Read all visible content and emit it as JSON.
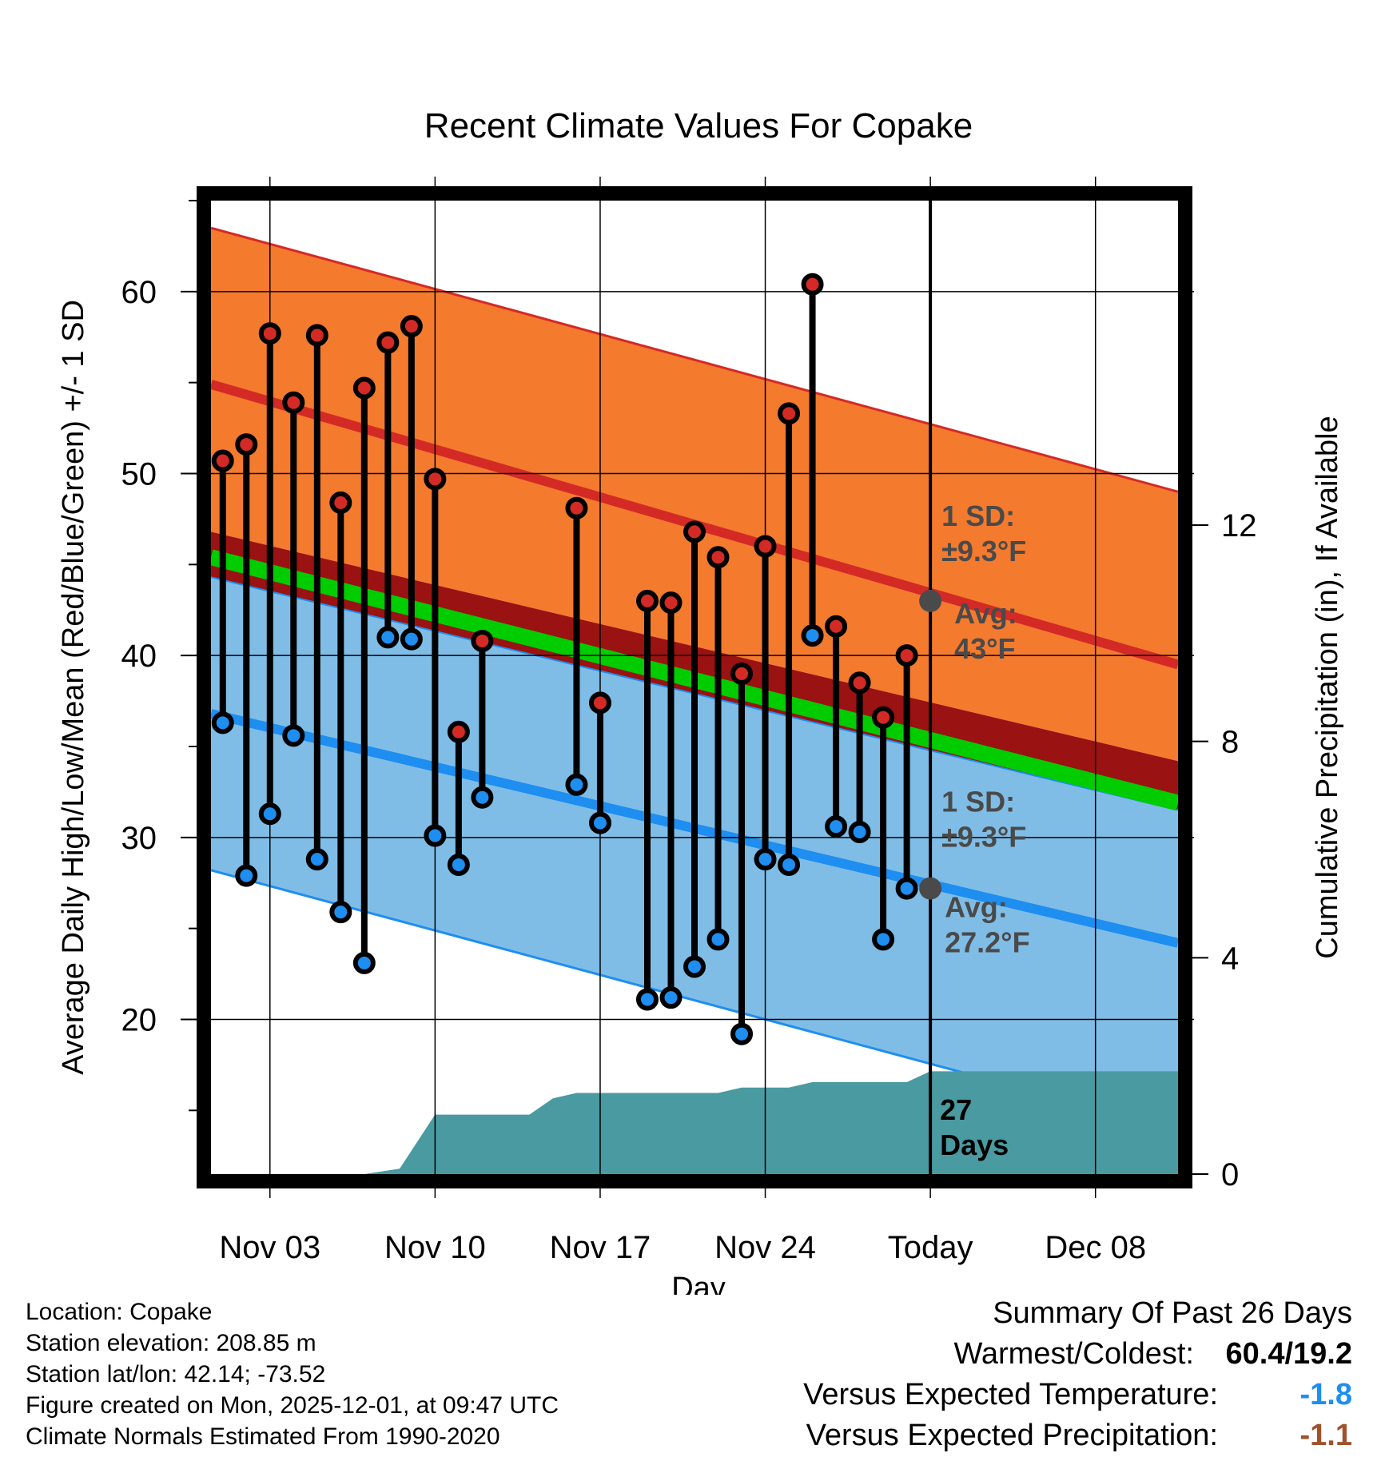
{
  "colors": {
    "high_band": "#f47a2e",
    "low_band": "#7fbde6",
    "high_line": "#d42a26",
    "low_line": "#1e8ef0",
    "mean_line": "#00cc00",
    "dark_band": "#9a1212",
    "precip": "#4a9aa2",
    "high_dot": "#d42a26",
    "low_dot": "#1e8ef0",
    "summary_temp": "#1e8ef0",
    "summary_precip": "#a0522d"
  },
  "chart_data": {
    "type": "line",
    "title": "Recent Climate Values For Copake",
    "xlabel": "Day",
    "ylabel": "Average Daily High/Low/Mean (Red/Blue/Green) +/- 1 SD",
    "y2label": "Cumulative Precipitation (in), If Available",
    "ylim": [
      11.5,
      65
    ],
    "y2lim": [
      0,
      18
    ],
    "xlim": [
      -0.5,
      40.5
    ],
    "x_ticks": [
      {
        "day": 2,
        "label": "Nov 03"
      },
      {
        "day": 9,
        "label": "Nov 10"
      },
      {
        "day": 16,
        "label": "Nov 17"
      },
      {
        "day": 23,
        "label": "Nov 24"
      },
      {
        "day": 30,
        "label": "Today"
      },
      {
        "day": 37,
        "label": "Dec 08"
      }
    ],
    "y_ticks": [
      20,
      30,
      40,
      50,
      60
    ],
    "y2_ticks": [
      0,
      4,
      8,
      12
    ],
    "normals": {
      "days": [
        -0.5,
        40.5
      ],
      "high_avg": [
        54.9,
        39.5
      ],
      "high_upper": [
        63.5,
        49.0
      ],
      "high_lower": [
        46.8,
        34.2
      ],
      "mean": [
        45.4,
        31.9
      ],
      "low_avg": [
        36.8,
        24.2
      ],
      "low_upper": [
        44.3,
        31.5
      ],
      "low_lower": [
        28.2,
        13.9
      ]
    },
    "today": {
      "day": 30,
      "high_avg": 43,
      "low_avg": 27.2,
      "sd": 9.3,
      "high_sd_label": "1 SD:",
      "high_sd_value": "±9.3°F",
      "high_avg_label": "Avg:",
      "high_avg_value": "43°F",
      "low_sd_label": "1 SD:",
      "low_sd_value": "±9.3°F",
      "low_avg_label": "Avg:",
      "low_avg_value": "27.2°F",
      "days_label_1": "27",
      "days_label_2": "Days"
    },
    "observations": [
      {
        "day": 0,
        "high": 50.7,
        "low": 36.3
      },
      {
        "day": 1,
        "high": 51.6,
        "low": 27.9
      },
      {
        "day": 2,
        "high": 57.7,
        "low": 31.3
      },
      {
        "day": 3,
        "high": 53.9,
        "low": 35.6
      },
      {
        "day": 4,
        "high": 57.6,
        "low": 28.8
      },
      {
        "day": 5,
        "high": 48.4,
        "low": 25.9
      },
      {
        "day": 6,
        "high": 54.7,
        "low": 23.1
      },
      {
        "day": 7,
        "high": 57.2,
        "low": 41.0
      },
      {
        "day": 8,
        "high": 58.1,
        "low": 40.9
      },
      {
        "day": 9,
        "high": 49.7,
        "low": 30.1
      },
      {
        "day": 10,
        "high": 35.8,
        "low": 28.5
      },
      {
        "day": 11,
        "high": 40.8,
        "low": 32.2
      },
      {
        "day": 15,
        "high": 48.1,
        "low": 32.9
      },
      {
        "day": 16,
        "high": 37.4,
        "low": 30.8
      },
      {
        "day": 18,
        "high": 43.0,
        "low": 21.1
      },
      {
        "day": 19,
        "high": 42.9,
        "low": 21.2
      },
      {
        "day": 20,
        "high": 46.8,
        "low": 22.9
      },
      {
        "day": 21,
        "high": 45.4,
        "low": 24.4
      },
      {
        "day": 22,
        "high": 39.0,
        "low": 19.2
      },
      {
        "day": 23,
        "high": 46.0,
        "low": 28.8
      },
      {
        "day": 24,
        "high": 53.3,
        "low": 28.5
      },
      {
        "day": 25,
        "high": 60.4,
        "low": 41.1
      },
      {
        "day": 26,
        "high": 41.6,
        "low": 30.6
      },
      {
        "day": 27,
        "high": 38.5,
        "low": 30.3
      },
      {
        "day": 28,
        "high": 36.6,
        "low": 24.4
      },
      {
        "day": 29,
        "high": 40.0,
        "low": 27.2
      }
    ],
    "precip_cumulative": [
      {
        "day": -0.5,
        "value": 0.0
      },
      {
        "day": 6,
        "value": 0.0
      },
      {
        "day": 7.5,
        "value": 0.1
      },
      {
        "day": 9,
        "value": 1.1
      },
      {
        "day": 13,
        "value": 1.1
      },
      {
        "day": 14,
        "value": 1.4
      },
      {
        "day": 15,
        "value": 1.5
      },
      {
        "day": 21,
        "value": 1.5
      },
      {
        "day": 22,
        "value": 1.6
      },
      {
        "day": 24,
        "value": 1.6
      },
      {
        "day": 25,
        "value": 1.7
      },
      {
        "day": 29,
        "value": 1.7
      },
      {
        "day": 30,
        "value": 1.9
      },
      {
        "day": 40.5,
        "value": 1.9
      }
    ]
  },
  "footer_left": {
    "location": "Location: Copake",
    "elevation": "Station elevation: 208.85 m",
    "latlon": "Station lat/lon: 42.14; -73.52",
    "created": "Figure created on Mon, 2025-12-01, at 09:47 UTC",
    "normals": "Climate Normals Estimated From 1990-2020"
  },
  "summary": {
    "heading": "Summary Of Past 26 Days",
    "warmest_label": "Warmest/Coldest:",
    "warmest_value": "60.4/19.2",
    "temp_label": "Versus Expected Temperature:",
    "temp_value": "-1.8",
    "precip_label": "Versus Expected Precipitation:",
    "precip_value": "-1.1"
  }
}
